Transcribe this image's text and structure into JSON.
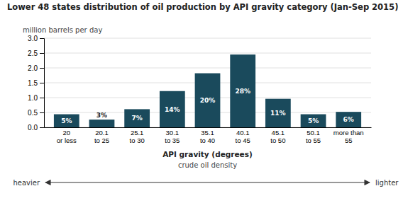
{
  "chart_data": {
    "type": "bar",
    "title": "Lower 48 states distribution of oil production  by API gravity category (Jan-Sep 2015)",
    "y_label": "million barrels  per day",
    "x_label": "API gravity (degrees)",
    "x_sublabel": "crude oil density",
    "categories": [
      "20\nor less",
      "20.1\nto 25",
      "25.1\nto 30",
      "30.1\nto 35",
      "35.1\nto 40",
      "40.1\nto 45",
      "45.1\nto 50",
      "50.1\nto 55",
      "more than\n55"
    ],
    "values": [
      0.44,
      0.26,
      0.61,
      1.22,
      1.82,
      2.45,
      0.96,
      0.44,
      0.52
    ],
    "percentages": [
      "5%",
      "3%",
      "7%",
      "14%",
      "20%",
      "28%",
      "11%",
      "5%",
      "6%"
    ],
    "color": "#1a4a5c",
    "ylim": [
      0,
      3.0
    ],
    "yticks": [
      {
        "value": 0.0,
        "label": "0.0"
      },
      0.5,
      {
        "value": 1.0,
        "label": "1.0"
      },
      1.5,
      {
        "value": 2.0,
        "label": "2.0"
      },
      2.5,
      {
        "value": 3.0,
        "label": "3.0"
      }
    ],
    "grid": true,
    "arrow_left": "heavier",
    "arrow_right": "lighter"
  }
}
